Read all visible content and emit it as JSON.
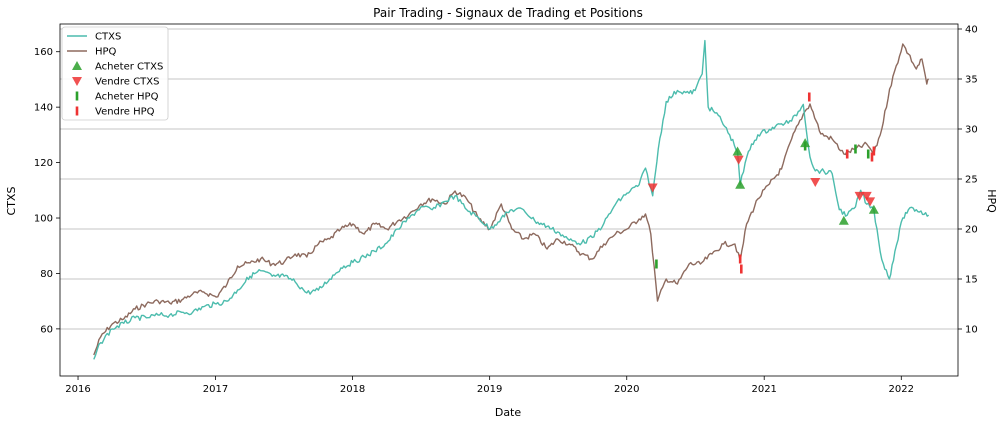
{
  "chart_data": {
    "type": "line",
    "title": "Pair Trading - Signaux de Trading et Positions",
    "xlabel": "Date",
    "ylabel_left": "CTXS",
    "ylabel_right": "HPQ",
    "x_ticks": [
      "2016",
      "2017",
      "2018",
      "2019",
      "2020",
      "2021",
      "2022"
    ],
    "y_left_ticks": [
      60,
      80,
      100,
      120,
      140,
      160
    ],
    "y_right_ticks": [
      10,
      15,
      20,
      25,
      30,
      35,
      40
    ],
    "xlim": [
      "2015-11-14",
      "2022-06-01"
    ],
    "ylim_left": [
      43,
      170
    ],
    "ylim_right": [
      5.3,
      40.5
    ],
    "grid": "horizontal lines at right-axis ticks",
    "legend_placement": "top-left",
    "colors": {
      "ctxs": "#4cbcad",
      "hpq": "#8d6a5e",
      "buy": "#2ca02c",
      "sell": "#ee3333",
      "grid": "#b0b0b0"
    },
    "legend": [
      {
        "label": "CTXS",
        "marker": "line",
        "color": "#4cbcad"
      },
      {
        "label": "HPQ",
        "marker": "line",
        "color": "#8d6a5e"
      },
      {
        "label": "Acheter CTXS",
        "marker": "triangle-up",
        "color": "#2ca02c"
      },
      {
        "label": "Vendre CTXS",
        "marker": "triangle-down",
        "color": "#ee3333"
      },
      {
        "label": "Acheter HPQ",
        "marker": "bar",
        "color": "#2ca02c"
      },
      {
        "label": "Vendre HPQ",
        "marker": "bar",
        "color": "#ee3333"
      }
    ],
    "series": [
      {
        "name": "CTXS",
        "axis": "left",
        "points": [
          [
            "2016-02-12",
            49
          ],
          [
            "2016-03-01",
            55
          ],
          [
            "2016-04-01",
            60
          ],
          [
            "2016-05-02",
            62
          ],
          [
            "2016-06-01",
            64
          ],
          [
            "2016-07-01",
            64
          ],
          [
            "2016-08-01",
            65
          ],
          [
            "2016-09-01",
            65
          ],
          [
            "2016-10-03",
            66
          ],
          [
            "2016-11-01",
            66
          ],
          [
            "2016-12-01",
            68
          ],
          [
            "2017-01-03",
            69
          ],
          [
            "2017-02-01",
            70
          ],
          [
            "2017-03-01",
            74
          ],
          [
            "2017-04-03",
            79
          ],
          [
            "2017-05-01",
            81
          ],
          [
            "2017-06-01",
            79
          ],
          [
            "2017-07-03",
            79
          ],
          [
            "2017-08-01",
            77
          ],
          [
            "2017-09-01",
            73
          ],
          [
            "2017-10-02",
            74
          ],
          [
            "2017-11-01",
            78
          ],
          [
            "2017-12-01",
            82
          ],
          [
            "2018-01-02",
            84
          ],
          [
            "2018-02-01",
            86
          ],
          [
            "2018-03-01",
            88
          ],
          [
            "2018-04-02",
            91
          ],
          [
            "2018-05-01",
            96
          ],
          [
            "2018-06-01",
            100
          ],
          [
            "2018-07-02",
            104
          ],
          [
            "2018-08-01",
            103
          ],
          [
            "2018-09-04",
            106
          ],
          [
            "2018-10-01",
            108
          ],
          [
            "2018-11-01",
            103
          ],
          [
            "2018-12-03",
            100
          ],
          [
            "2019-01-02",
            96
          ],
          [
            "2019-02-01",
            100
          ],
          [
            "2019-03-01",
            103
          ],
          [
            "2019-04-01",
            103
          ],
          [
            "2019-05-01",
            99
          ],
          [
            "2019-06-03",
            97
          ],
          [
            "2019-07-01",
            95
          ],
          [
            "2019-08-01",
            92
          ],
          [
            "2019-09-03",
            91
          ],
          [
            "2019-10-01",
            93
          ],
          [
            "2019-11-01",
            98
          ],
          [
            "2019-12-02",
            105
          ],
          [
            "2020-01-02",
            109
          ],
          [
            "2020-02-03",
            112
          ],
          [
            "2020-02-20",
            118
          ],
          [
            "2020-03-10",
            108
          ],
          [
            "2020-03-25",
            125
          ],
          [
            "2020-04-15",
            142
          ],
          [
            "2020-05-15",
            146
          ],
          [
            "2020-06-15",
            145
          ],
          [
            "2020-07-01",
            146
          ],
          [
            "2020-07-20",
            152
          ],
          [
            "2020-07-27",
            164
          ],
          [
            "2020-08-05",
            140
          ],
          [
            "2020-09-01",
            137
          ],
          [
            "2020-10-01",
            130
          ],
          [
            "2020-10-22",
            124
          ],
          [
            "2020-10-29",
            112
          ],
          [
            "2020-11-20",
            124
          ],
          [
            "2020-12-15",
            130
          ],
          [
            "2021-01-15",
            132
          ],
          [
            "2021-02-16",
            134
          ],
          [
            "2021-03-15",
            135
          ],
          [
            "2021-04-15",
            141
          ],
          [
            "2021-05-03",
            122
          ],
          [
            "2021-05-17",
            117
          ],
          [
            "2021-06-01",
            117
          ],
          [
            "2021-07-01",
            116
          ],
          [
            "2021-07-20",
            103
          ],
          [
            "2021-08-10",
            101
          ],
          [
            "2021-09-01",
            104
          ],
          [
            "2021-09-15",
            110
          ],
          [
            "2021-10-01",
            105
          ],
          [
            "2021-10-20",
            103
          ],
          [
            "2021-11-10",
            85
          ],
          [
            "2021-11-30",
            78
          ],
          [
            "2021-12-15",
            88
          ],
          [
            "2022-01-05",
            100
          ],
          [
            "2022-01-20",
            103
          ],
          [
            "2022-02-10",
            103
          ],
          [
            "2022-03-15",
            101
          ]
        ]
      },
      {
        "name": "HPQ",
        "axis": "right",
        "points": [
          [
            "2016-02-12",
            7.4
          ],
          [
            "2016-03-01",
            9.2
          ],
          [
            "2016-04-01",
            10.5
          ],
          [
            "2016-05-02",
            11.0
          ],
          [
            "2016-06-01",
            12.0
          ],
          [
            "2016-07-01",
            12.5
          ],
          [
            "2016-08-01",
            12.8
          ],
          [
            "2016-09-01",
            12.6
          ],
          [
            "2016-10-03",
            12.9
          ],
          [
            "2016-11-01",
            13.5
          ],
          [
            "2016-12-01",
            13.7
          ],
          [
            "2017-01-03",
            13.2
          ],
          [
            "2017-02-01",
            14.5
          ],
          [
            "2017-03-01",
            16.3
          ],
          [
            "2017-04-03",
            16.6
          ],
          [
            "2017-05-01",
            17.0
          ],
          [
            "2017-06-01",
            16.5
          ],
          [
            "2017-07-03",
            16.7
          ],
          [
            "2017-08-01",
            17.5
          ],
          [
            "2017-09-01",
            17.2
          ],
          [
            "2017-10-02",
            18.5
          ],
          [
            "2017-11-01",
            19.0
          ],
          [
            "2017-12-01",
            20.0
          ],
          [
            "2018-01-02",
            20.5
          ],
          [
            "2018-02-01",
            19.5
          ],
          [
            "2018-03-01",
            20.5
          ],
          [
            "2018-04-02",
            20.0
          ],
          [
            "2018-05-01",
            20.8
          ],
          [
            "2018-06-01",
            21.5
          ],
          [
            "2018-07-02",
            22.5
          ],
          [
            "2018-08-01",
            23.0
          ],
          [
            "2018-09-04",
            22.5
          ],
          [
            "2018-10-01",
            23.8
          ],
          [
            "2018-11-01",
            23.0
          ],
          [
            "2018-12-03",
            21.0
          ],
          [
            "2019-01-02",
            20.0
          ],
          [
            "2019-02-01",
            22.5
          ],
          [
            "2019-03-01",
            20.0
          ],
          [
            "2019-04-01",
            19.0
          ],
          [
            "2019-05-01",
            19.5
          ],
          [
            "2019-06-03",
            18.0
          ],
          [
            "2019-07-01",
            19.0
          ],
          [
            "2019-08-01",
            18.5
          ],
          [
            "2019-09-03",
            17.5
          ],
          [
            "2019-10-01",
            17.0
          ],
          [
            "2019-11-01",
            18.5
          ],
          [
            "2019-12-02",
            19.5
          ],
          [
            "2020-01-02",
            20.0
          ],
          [
            "2020-02-03",
            21.0
          ],
          [
            "2020-02-20",
            21.5
          ],
          [
            "2020-03-05",
            19.5
          ],
          [
            "2020-03-23",
            12.8
          ],
          [
            "2020-04-15",
            15.0
          ],
          [
            "2020-05-15",
            14.5
          ],
          [
            "2020-06-15",
            16.5
          ],
          [
            "2020-07-15",
            16.5
          ],
          [
            "2020-08-15",
            17.5
          ],
          [
            "2020-09-15",
            18.5
          ],
          [
            "2020-10-15",
            18.5
          ],
          [
            "2020-10-29",
            16.8
          ],
          [
            "2020-11-15",
            20.5
          ],
          [
            "2020-12-15",
            23.0
          ],
          [
            "2021-01-15",
            24.5
          ],
          [
            "2021-02-16",
            26.0
          ],
          [
            "2021-03-15",
            29.0
          ],
          [
            "2021-04-15",
            31.5
          ],
          [
            "2021-05-03",
            32.5
          ],
          [
            "2021-06-01",
            29.5
          ],
          [
            "2021-07-01",
            29.0
          ],
          [
            "2021-08-01",
            27.5
          ],
          [
            "2021-09-01",
            28.0
          ],
          [
            "2021-10-01",
            28.5
          ],
          [
            "2021-10-20",
            27.5
          ],
          [
            "2021-11-10",
            30.0
          ],
          [
            "2021-12-01",
            34.0
          ],
          [
            "2022-01-05",
            38.5
          ],
          [
            "2022-01-20",
            37.5
          ],
          [
            "2022-02-10",
            36.0
          ],
          [
            "2022-02-25",
            37.0
          ],
          [
            "2022-03-10",
            34.5
          ],
          [
            "2022-03-15",
            35.0
          ]
        ]
      }
    ],
    "signals": {
      "buy_ctxs": [
        [
          "2020-10-22",
          124
        ],
        [
          "2020-10-29",
          112
        ],
        [
          "2021-04-20",
          127
        ],
        [
          "2021-08-01",
          99
        ],
        [
          "2021-10-20",
          103
        ]
      ],
      "sell_ctxs": [
        [
          "2020-03-10",
          111
        ],
        [
          "2020-10-25",
          121
        ],
        [
          "2021-05-17",
          113
        ],
        [
          "2021-09-12",
          108
        ],
        [
          "2021-10-01",
          108
        ],
        [
          "2021-10-10",
          106
        ]
      ],
      "buy_hpq": [
        [
          "2020-03-20",
          16.5
        ],
        [
          "2021-04-20",
          28.3
        ],
        [
          "2021-09-01",
          28.0
        ],
        [
          "2021-10-05",
          27.5
        ]
      ],
      "sell_hpq": [
        [
          "2020-10-29",
          17.0
        ],
        [
          "2020-11-01",
          16.0
        ],
        [
          "2021-05-01",
          33.2
        ],
        [
          "2021-08-10",
          27.5
        ],
        [
          "2021-10-15",
          27.2
        ],
        [
          "2021-10-20",
          27.8
        ]
      ]
    }
  }
}
